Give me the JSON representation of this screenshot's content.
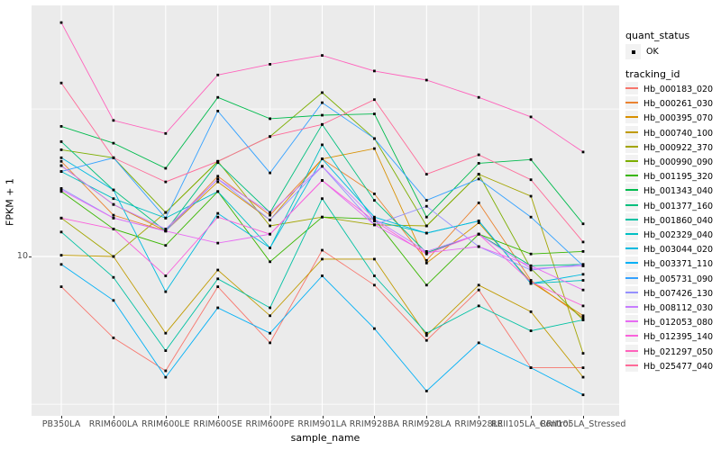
{
  "chart_data": {
    "type": "line",
    "xlabel": "sample_name",
    "ylabel": "FPKM + 1",
    "y_scale": "log10",
    "y_major_breaks": [
      10
    ],
    "y_minor_breaks": [
      31.6,
      3.16
    ],
    "y_tick_labels": [
      "10"
    ],
    "ylim": [
      2.9,
      71
    ],
    "grid": "white-on-gray",
    "point_shape": "filled-square",
    "point_color": "#000000",
    "categories": [
      "PB350LA",
      "RRIM600LA",
      "RRIM600LE",
      "RRIM600SE",
      "RRIM600PE",
      "RRIM901LA",
      "RRIM928BA",
      "RRIM928LA",
      "RRIM928LE",
      "RRII105LA_Control",
      "RRII105LA_Stressed"
    ],
    "series": [
      {
        "name": "Hb_000183_020",
        "color": "#F8766D",
        "values": [
          7.9,
          5.3,
          4.1,
          7.9,
          5.1,
          10.5,
          8.0,
          5.2,
          7.7,
          4.2,
          4.2
        ]
      },
      {
        "name": "Hb_000261_030",
        "color": "#EA8331",
        "values": [
          21.0,
          13.8,
          12.2,
          18.7,
          13.8,
          21.4,
          16.3,
          9.7,
          15.2,
          8.3,
          6.2
        ]
      },
      {
        "name": "Hb_000395_070",
        "color": "#D89000",
        "values": [
          20.3,
          15.0,
          12.2,
          17.9,
          13.3,
          21.4,
          23.2,
          9.5,
          13.0,
          8.2,
          6.3
        ]
      },
      {
        "name": "Hb_000740_100",
        "color": "#C09B00",
        "values": [
          10.1,
          10.0,
          5.5,
          9.0,
          6.3,
          9.8,
          9.8,
          5.4,
          8.0,
          6.5,
          3.9
        ]
      },
      {
        "name": "Hb_000922_370",
        "color": "#A3A500",
        "values": [
          13.5,
          10.0,
          14.1,
          21.0,
          12.7,
          13.6,
          12.8,
          12.7,
          19.0,
          16.0,
          4.7
        ]
      },
      {
        "name": "Hb_000990_090",
        "color": "#7CAE00",
        "values": [
          23.0,
          21.6,
          14.1,
          21.0,
          25.5,
          35.9,
          25.1,
          12.7,
          19.0,
          9.1,
          6.1
        ]
      },
      {
        "name": "Hb_001195_320",
        "color": "#39B600",
        "values": [
          16.6,
          12.4,
          10.9,
          16.6,
          9.6,
          13.6,
          13.4,
          8.0,
          11.9,
          10.2,
          10.4
        ]
      },
      {
        "name": "Hb_001343_040",
        "color": "#00BB4E",
        "values": [
          27.6,
          24.2,
          19.9,
          34.6,
          29.3,
          30.1,
          30.4,
          13.6,
          20.7,
          21.3,
          12.9
        ]
      },
      {
        "name": "Hb_001377_160",
        "color": "#00BF7D",
        "values": [
          24.5,
          16.8,
          12.2,
          20.8,
          14.1,
          28.0,
          15.5,
          10.3,
          11.9,
          9.3,
          9.4
        ]
      },
      {
        "name": "Hb_001860_040",
        "color": "#00C1A3",
        "values": [
          12.1,
          8.5,
          4.8,
          8.4,
          6.7,
          15.7,
          8.6,
          5.5,
          6.8,
          5.6,
          6.1
        ]
      },
      {
        "name": "Hb_002329_040",
        "color": "#00BFC4",
        "values": [
          19.4,
          15.7,
          13.5,
          16.6,
          10.7,
          23.9,
          13.2,
          12.0,
          13.2,
          8.1,
          8.3
        ]
      },
      {
        "name": "Hb_003044_020",
        "color": "#00BAE0",
        "values": [
          21.6,
          16.8,
          7.6,
          14.0,
          10.7,
          21.4,
          13.6,
          12.0,
          13.2,
          8.1,
          8.7
        ]
      },
      {
        "name": "Hb_003371_110",
        "color": "#00B0F6",
        "values": [
          9.4,
          7.1,
          3.9,
          6.7,
          5.5,
          8.6,
          5.7,
          3.5,
          5.1,
          4.2,
          3.4
        ]
      },
      {
        "name": "Hb_005731_090",
        "color": "#35A2FF",
        "values": [
          19.4,
          21.6,
          13.5,
          31.1,
          19.2,
          33.2,
          25.1,
          15.5,
          18.3,
          13.6,
          9.3
        ]
      },
      {
        "name": "Hb_007426_130",
        "color": "#9590FF",
        "values": [
          17.0,
          13.5,
          12.2,
          18.3,
          13.3,
          20.2,
          12.8,
          14.8,
          10.8,
          9.0,
          9.4
        ]
      },
      {
        "name": "Hb_008112_030",
        "color": "#C77CFF",
        "values": [
          20.3,
          15.0,
          12.4,
          18.3,
          14.1,
          20.2,
          13.4,
          10.4,
          11.9,
          9.1,
          9.3
        ]
      },
      {
        "name": "Hb_012053_080",
        "color": "#E76BF3",
        "values": [
          16.8,
          13.5,
          12.2,
          11.1,
          11.9,
          18.1,
          12.8,
          10.3,
          10.8,
          9.3,
          7.7
        ]
      },
      {
        "name": "Hb_012395_140",
        "color": "#FA62DB",
        "values": [
          13.5,
          12.4,
          8.6,
          13.6,
          11.9,
          18.1,
          13.2,
          10.2,
          11.9,
          8.2,
          6.8
        ]
      },
      {
        "name": "Hb_021297_050",
        "color": "#FF62BC",
        "values": [
          62.0,
          28.9,
          26.1,
          41.2,
          44.8,
          48.0,
          42.5,
          39.6,
          34.6,
          29.7,
          22.6
        ]
      },
      {
        "name": "Hb_025477_040",
        "color": "#FF6A98",
        "values": [
          38.7,
          21.6,
          17.9,
          21.0,
          25.5,
          28.0,
          34.0,
          19.0,
          22.1,
          18.2,
          11.2
        ]
      }
    ]
  },
  "legend": {
    "quant_status_title": "quant_status",
    "quant_status_ok_label": "OK",
    "tracking_id_title": "tracking_id"
  },
  "colors": {
    "panel_bg": "#EBEBEB",
    "grid": "#FFFFFF",
    "axis_text": "#4D4D4D",
    "legend_key_bg": "#F2F2F2",
    "point": "#000000"
  }
}
